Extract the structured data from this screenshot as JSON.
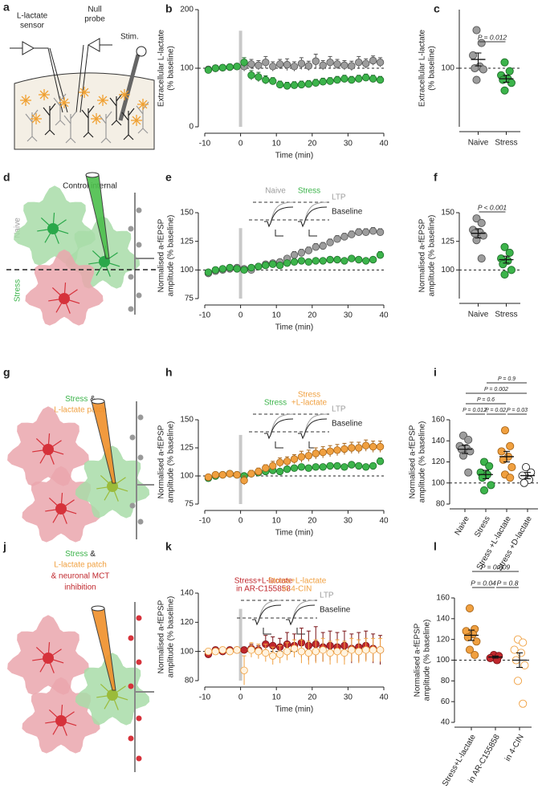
{
  "illustrations": {
    "a": {
      "label": "a",
      "sensor": [
        "L-lactate",
        "sensor"
      ],
      "probe": [
        "Null",
        "probe"
      ],
      "stim": "Stim."
    },
    "d": {
      "label": "d",
      "title": "Control internal",
      "upper": "Naive",
      "lower": "Stress"
    },
    "g": {
      "label": "g",
      "line1": [
        "Stress",
        "&"
      ],
      "line2": "L-lactate patch"
    },
    "j": {
      "label": "j",
      "line1": [
        "Stress",
        "&"
      ],
      "line2": "L-lactate patch",
      "line3": "& neuronal MCT",
      "line4": "inhibition"
    }
  },
  "chart_data": [
    {
      "type": "timecourse",
      "label": "b",
      "xlabel": "Time (min)",
      "ylabel": [
        "Extracellular L-lactate",
        "(% baseline)"
      ],
      "x": [
        -9,
        -7,
        -5,
        -3,
        -1,
        1,
        3,
        5,
        7,
        9,
        11,
        13,
        15,
        17,
        19,
        21,
        23,
        25,
        27,
        29,
        31,
        33,
        35,
        37,
        39
      ],
      "xlim": [
        -10,
        40
      ],
      "xticks": [
        -10,
        0,
        10,
        20,
        30,
        40
      ],
      "ylim": [
        0,
        200
      ],
      "yticks": [
        0,
        100,
        200
      ],
      "marker_x": 0,
      "baseline": 100,
      "series": [
        {
          "color": "#9d9d9d",
          "edge": "#555555",
          "values": [
            98,
            100,
            101,
            102,
            103,
            103,
            107,
            105,
            110,
            103,
            107,
            106,
            103,
            108,
            104,
            112,
            105,
            110,
            107,
            105,
            104,
            110,
            108,
            113,
            110
          ],
          "errors": [
            5,
            5,
            5,
            5,
            5,
            8,
            8,
            8,
            10,
            8,
            8,
            10,
            8,
            10,
            8,
            12,
            8,
            10,
            8,
            8,
            8,
            10,
            8,
            8,
            8
          ]
        },
        {
          "color": "#3cb44b",
          "edge": "#1f6e2a",
          "values": [
            97,
            100,
            101,
            102,
            103,
            110,
            88,
            85,
            80,
            78,
            72,
            70,
            71,
            72,
            73,
            75,
            77,
            78,
            80,
            82,
            80,
            82,
            84,
            82,
            80
          ],
          "errors": [
            5,
            4,
            4,
            4,
            5,
            8,
            8,
            8,
            7,
            6,
            6,
            6,
            6,
            6,
            6,
            6,
            6,
            6,
            6,
            6,
            6,
            6,
            6,
            6,
            6
          ]
        }
      ]
    },
    {
      "type": "dot",
      "label": "c",
      "ylabel": [
        "Extracellular L-lactate",
        "(% baseline)"
      ],
      "categories": [
        "Naive",
        "Stress"
      ],
      "ylim": [
        0,
        200
      ],
      "yticks": [
        100
      ],
      "baseline": 100,
      "colors": [
        {
          "fill": "#9d9d9d",
          "edge": "#555555"
        },
        {
          "fill": "#3cb44b",
          "edge": "#1f6e2a"
        }
      ],
      "points": [
        [
          165,
          143,
          122,
          103,
          100,
          98,
          80
        ],
        [
          110,
          95,
          88,
          82,
          80,
          75,
          62
        ]
      ],
      "means": [
        115,
        82
      ],
      "sems": [
        11,
        6
      ],
      "annotations": [
        [
          {
            "text": "P = 0.012",
            "pair": [
              0,
              1
            ]
          }
        ]
      ]
    },
    {
      "type": "timecourse",
      "label": "e",
      "xlabel": "Time (min)",
      "ylabel": [
        "Normalised a-fEPSP",
        "amplitude (% baseline)"
      ],
      "x": [
        -9,
        -7,
        -5,
        -3,
        -1,
        1,
        3,
        5,
        7,
        9,
        11,
        13,
        15,
        17,
        19,
        21,
        23,
        25,
        27,
        29,
        31,
        33,
        35,
        37,
        39
      ],
      "xlim": [
        -10,
        40
      ],
      "xticks": [
        -10,
        0,
        10,
        20,
        30,
        40
      ],
      "ylim": [
        75,
        150
      ],
      "yticks": [
        75,
        100,
        125,
        150
      ],
      "marker_x": 0,
      "baseline": 100,
      "inset": [
        {
          "lines": [
            "Naive"
          ],
          "color": "#9d9d9d"
        },
        {
          "lines": [
            "Stress"
          ],
          "color": "#3cb44b"
        },
        {
          "lines": [
            "LTP"
          ],
          "color": "#9d9d9d"
        },
        {
          "lines": [
            "Baseline"
          ],
          "color": "#222222"
        }
      ],
      "series": [
        {
          "color": "#9d9d9d",
          "edge": "#555555",
          "values": [
            97,
            99,
            100,
            101,
            102,
            101,
            100,
            103,
            105,
            106,
            107,
            110,
            113,
            115,
            117,
            120,
            121,
            124,
            127,
            129,
            131,
            133,
            133,
            134,
            133
          ],
          "errors": [
            2,
            2,
            2,
            2,
            2,
            2,
            2,
            2,
            2,
            2,
            2,
            2,
            3,
            3,
            3,
            3,
            3,
            3,
            3,
            3,
            3,
            3,
            3,
            3,
            3
          ]
        },
        {
          "color": "#3cb44b",
          "edge": "#1f6e2a",
          "values": [
            98,
            100,
            101,
            102,
            101,
            100,
            102,
            103,
            104,
            105,
            104,
            106,
            107,
            108,
            107,
            108,
            108,
            109,
            109,
            108,
            110,
            109,
            108,
            109,
            113
          ],
          "errors": [
            2,
            2,
            2,
            2,
            2,
            2,
            2,
            2,
            2,
            2,
            2,
            2,
            2,
            2,
            2,
            2,
            2,
            2,
            2,
            2,
            2,
            2,
            2,
            2,
            3
          ]
        }
      ]
    },
    {
      "type": "dot",
      "label": "f",
      "ylabel": [
        "Normalised a-fEPSP",
        "amplitude (% baseline)"
      ],
      "categories": [
        "Naive",
        "Stress"
      ],
      "ylim": [
        75,
        150
      ],
      "yticks": [
        100,
        125,
        150
      ],
      "baseline": 100,
      "colors": [
        {
          "fill": "#9d9d9d",
          "edge": "#555555"
        },
        {
          "fill": "#3cb44b",
          "edge": "#1f6e2a"
        }
      ],
      "points": [
        [
          145,
          141,
          135,
          133,
          132,
          130,
          126,
          110
        ],
        [
          120,
          115,
          110,
          108,
          105,
          100,
          96
        ]
      ],
      "means": [
        132,
        109
      ],
      "sems": [
        4,
        3
      ],
      "annotations": [
        [
          {
            "text": "P < 0.001",
            "pair": [
              0,
              1
            ]
          }
        ]
      ]
    },
    {
      "type": "timecourse",
      "label": "h",
      "xlabel": "Time (min)",
      "ylabel": [
        "Normalised a-fEPSP",
        "amplitude (% baseline)"
      ],
      "x": [
        -9,
        -7,
        -5,
        -3,
        -1,
        1,
        3,
        5,
        7,
        9,
        11,
        13,
        15,
        17,
        19,
        21,
        23,
        25,
        27,
        29,
        31,
        33,
        35,
        37,
        39
      ],
      "xlim": [
        -10,
        40
      ],
      "xticks": [
        -10,
        0,
        10,
        20,
        30,
        40
      ],
      "ylim": [
        75,
        150
      ],
      "yticks": [
        75,
        100,
        125,
        150
      ],
      "marker_x": 0,
      "baseline": 100,
      "inset": [
        {
          "lines": [
            "Stress"
          ],
          "color": "#3cb44b"
        },
        {
          "lines": [
            "Stress",
            "+L-lactate"
          ],
          "color": "#f0a040"
        },
        {
          "lines": [
            "LTP"
          ],
          "color": "#9d9d9d"
        },
        {
          "lines": [
            "Baseline"
          ],
          "color": "#222222"
        }
      ],
      "series": [
        {
          "color": "#3cb44b",
          "edge": "#1f6e2a",
          "values": [
            98,
            100,
            101,
            102,
            101,
            100,
            102,
            103,
            104,
            105,
            104,
            106,
            107,
            108,
            107,
            108,
            108,
            109,
            109,
            108,
            110,
            109,
            108,
            109,
            113
          ],
          "errors": [
            2,
            2,
            2,
            2,
            2,
            2,
            2,
            2,
            2,
            2,
            2,
            2,
            2,
            2,
            2,
            2,
            2,
            2,
            2,
            2,
            2,
            2,
            2,
            2,
            3
          ]
        },
        {
          "color": "#f0a040",
          "edge": "#a8661a",
          "values": [
            99,
            101,
            101,
            102,
            101,
            96,
            102,
            104,
            107,
            109,
            112,
            113,
            115,
            117,
            118,
            120,
            121,
            122,
            123,
            124,
            125,
            125,
            127,
            126,
            126
          ],
          "errors": [
            2,
            2,
            2,
            2,
            2,
            4,
            3,
            3,
            3,
            4,
            4,
            4,
            4,
            5,
            5,
            5,
            5,
            5,
            5,
            5,
            5,
            5,
            5,
            5,
            5
          ]
        }
      ]
    },
    {
      "type": "dot",
      "label": "i",
      "ylabel": [
        "Normalised a-fEPSP",
        "amplitude (% baseline)"
      ],
      "categories": [
        "Naive",
        "Stress",
        "Stress +L-lactate",
        "Stress +D-lactate"
      ],
      "ylim": [
        80,
        160
      ],
      "yticks": [
        80,
        100,
        120,
        140,
        160
      ],
      "baseline": 100,
      "colors": [
        {
          "fill": "#9d9d9d",
          "edge": "#555555"
        },
        {
          "fill": "#3cb44b",
          "edge": "#1f6e2a"
        },
        {
          "fill": "#f0a040",
          "edge": "#a8661a"
        },
        {
          "fill": "#ffffff",
          "edge": "#222222"
        }
      ],
      "points": [
        [
          145,
          141,
          135,
          133,
          132,
          130,
          126,
          110
        ],
        [
          120,
          116,
          110,
          108,
          105,
          98,
          93
        ],
        [
          150,
          135,
          130,
          125,
          122,
          115,
          108,
          105
        ],
        [
          115,
          110,
          107,
          103,
          100
        ]
      ],
      "means": [
        132,
        108,
        125,
        107
      ],
      "sems": [
        4,
        4,
        5,
        3
      ],
      "annotations": [
        [
          {
            "text": "P = 0.9",
            "pair": [
              1,
              3
            ]
          }
        ],
        [
          {
            "text": "P = 0.002",
            "pair": [
              0,
              3
            ]
          }
        ],
        [
          {
            "text": "P = 0.6",
            "pair": [
              0,
              2
            ]
          }
        ],
        [
          {
            "text": "P = 0.012,",
            "pair": [
              0,
              1
            ]
          },
          {
            "text": "P = 0.02,",
            "pair": [
              1,
              2
            ]
          },
          {
            "text": "P = 0.03",
            "pair": [
              2,
              3
            ]
          }
        ]
      ]
    },
    {
      "type": "timecourse",
      "label": "k",
      "xlabel": "Time (min)",
      "ylabel": [
        "Normalised a-fEPSP",
        "amplitude (% baseline)"
      ],
      "x": [
        -9,
        -7,
        -5,
        -3,
        -1,
        1,
        3,
        5,
        7,
        9,
        11,
        13,
        15,
        17,
        19,
        21,
        23,
        25,
        27,
        29,
        31,
        33,
        35,
        37,
        39
      ],
      "xlim": [
        -10,
        40
      ],
      "xticks": [
        -10,
        0,
        10,
        20,
        30,
        40
      ],
      "ylim": [
        80,
        140
      ],
      "yticks": [
        80,
        100,
        120,
        140
      ],
      "marker_x": 0,
      "baseline": 100,
      "inset": [
        {
          "lines": [
            "Stress+L-lactate",
            "in AR-C155858"
          ],
          "color": "#c0272d"
        },
        {
          "lines": [
            "Stress+L-lactate",
            "in 4-CIN"
          ],
          "color": "#f0a040"
        },
        {
          "lines": [
            "LTP"
          ],
          "color": "#9d9d9d"
        },
        {
          "lines": [
            "Baseline"
          ],
          "color": "#222222"
        }
      ],
      "series": [
        {
          "color": "#c0272d",
          "edge": "#7a1418",
          "values": [
            98,
            101,
            100,
            101,
            101,
            101,
            102,
            101,
            105,
            104,
            103,
            105,
            104,
            106,
            104,
            105,
            103,
            104,
            103,
            104,
            102,
            103,
            104,
            102,
            101
          ],
          "errors": [
            2,
            2,
            2,
            2,
            2,
            2,
            3,
            3,
            6,
            6,
            6,
            8,
            8,
            10,
            10,
            12,
            10,
            10,
            10,
            10,
            10,
            10,
            10,
            10,
            10
          ]
        },
        {
          "color": "#fff3e0",
          "edge": "#f0a040",
          "values": [
            100,
            100,
            101,
            100,
            101,
            87,
            101,
            100,
            99,
            97,
            98,
            100,
            102,
            100,
            99,
            100,
            101,
            99,
            100,
            99,
            101,
            100,
            101,
            101,
            101
          ],
          "errors": [
            2,
            2,
            2,
            2,
            2,
            10,
            5,
            5,
            6,
            6,
            6,
            6,
            6,
            8,
            8,
            8,
            8,
            8,
            8,
            8,
            8,
            8,
            8,
            8,
            8
          ]
        }
      ]
    },
    {
      "type": "dot",
      "label": "l",
      "ylabel": [
        "Normalised a-fEPSP",
        "amplitude (% baseline)"
      ],
      "categories": [
        "Stress+L-lactate",
        "in AR-C155858",
        "in 4-CIN"
      ],
      "ylim": [
        40,
        160
      ],
      "yticks": [
        40,
        60,
        80,
        100,
        120,
        140,
        160
      ],
      "baseline": 100,
      "colors": [
        {
          "fill": "#f0a040",
          "edge": "#a8661a"
        },
        {
          "fill": "#c0272d",
          "edge": "#7a1418"
        },
        {
          "fill": "#ffffff",
          "edge": "#f0a040"
        }
      ],
      "points": [
        [
          150,
          130,
          128,
          125,
          122,
          118,
          110,
          105
        ],
        [
          105,
          104,
          102,
          100
        ],
        [
          120,
          117,
          110,
          107,
          100,
          95,
          80,
          58
        ]
      ],
      "means": [
        124,
        103,
        100
      ],
      "sems": [
        5,
        1,
        7
      ],
      "annotations": [
        [
          {
            "text": "P = 0.009",
            "pair": [
              0,
              2
            ]
          }
        ],
        [
          {
            "text": "P = 0.04",
            "pair": [
              0,
              1
            ]
          },
          {
            "text": "P = 0.8",
            "pair": [
              1,
              2
            ]
          }
        ]
      ]
    }
  ]
}
